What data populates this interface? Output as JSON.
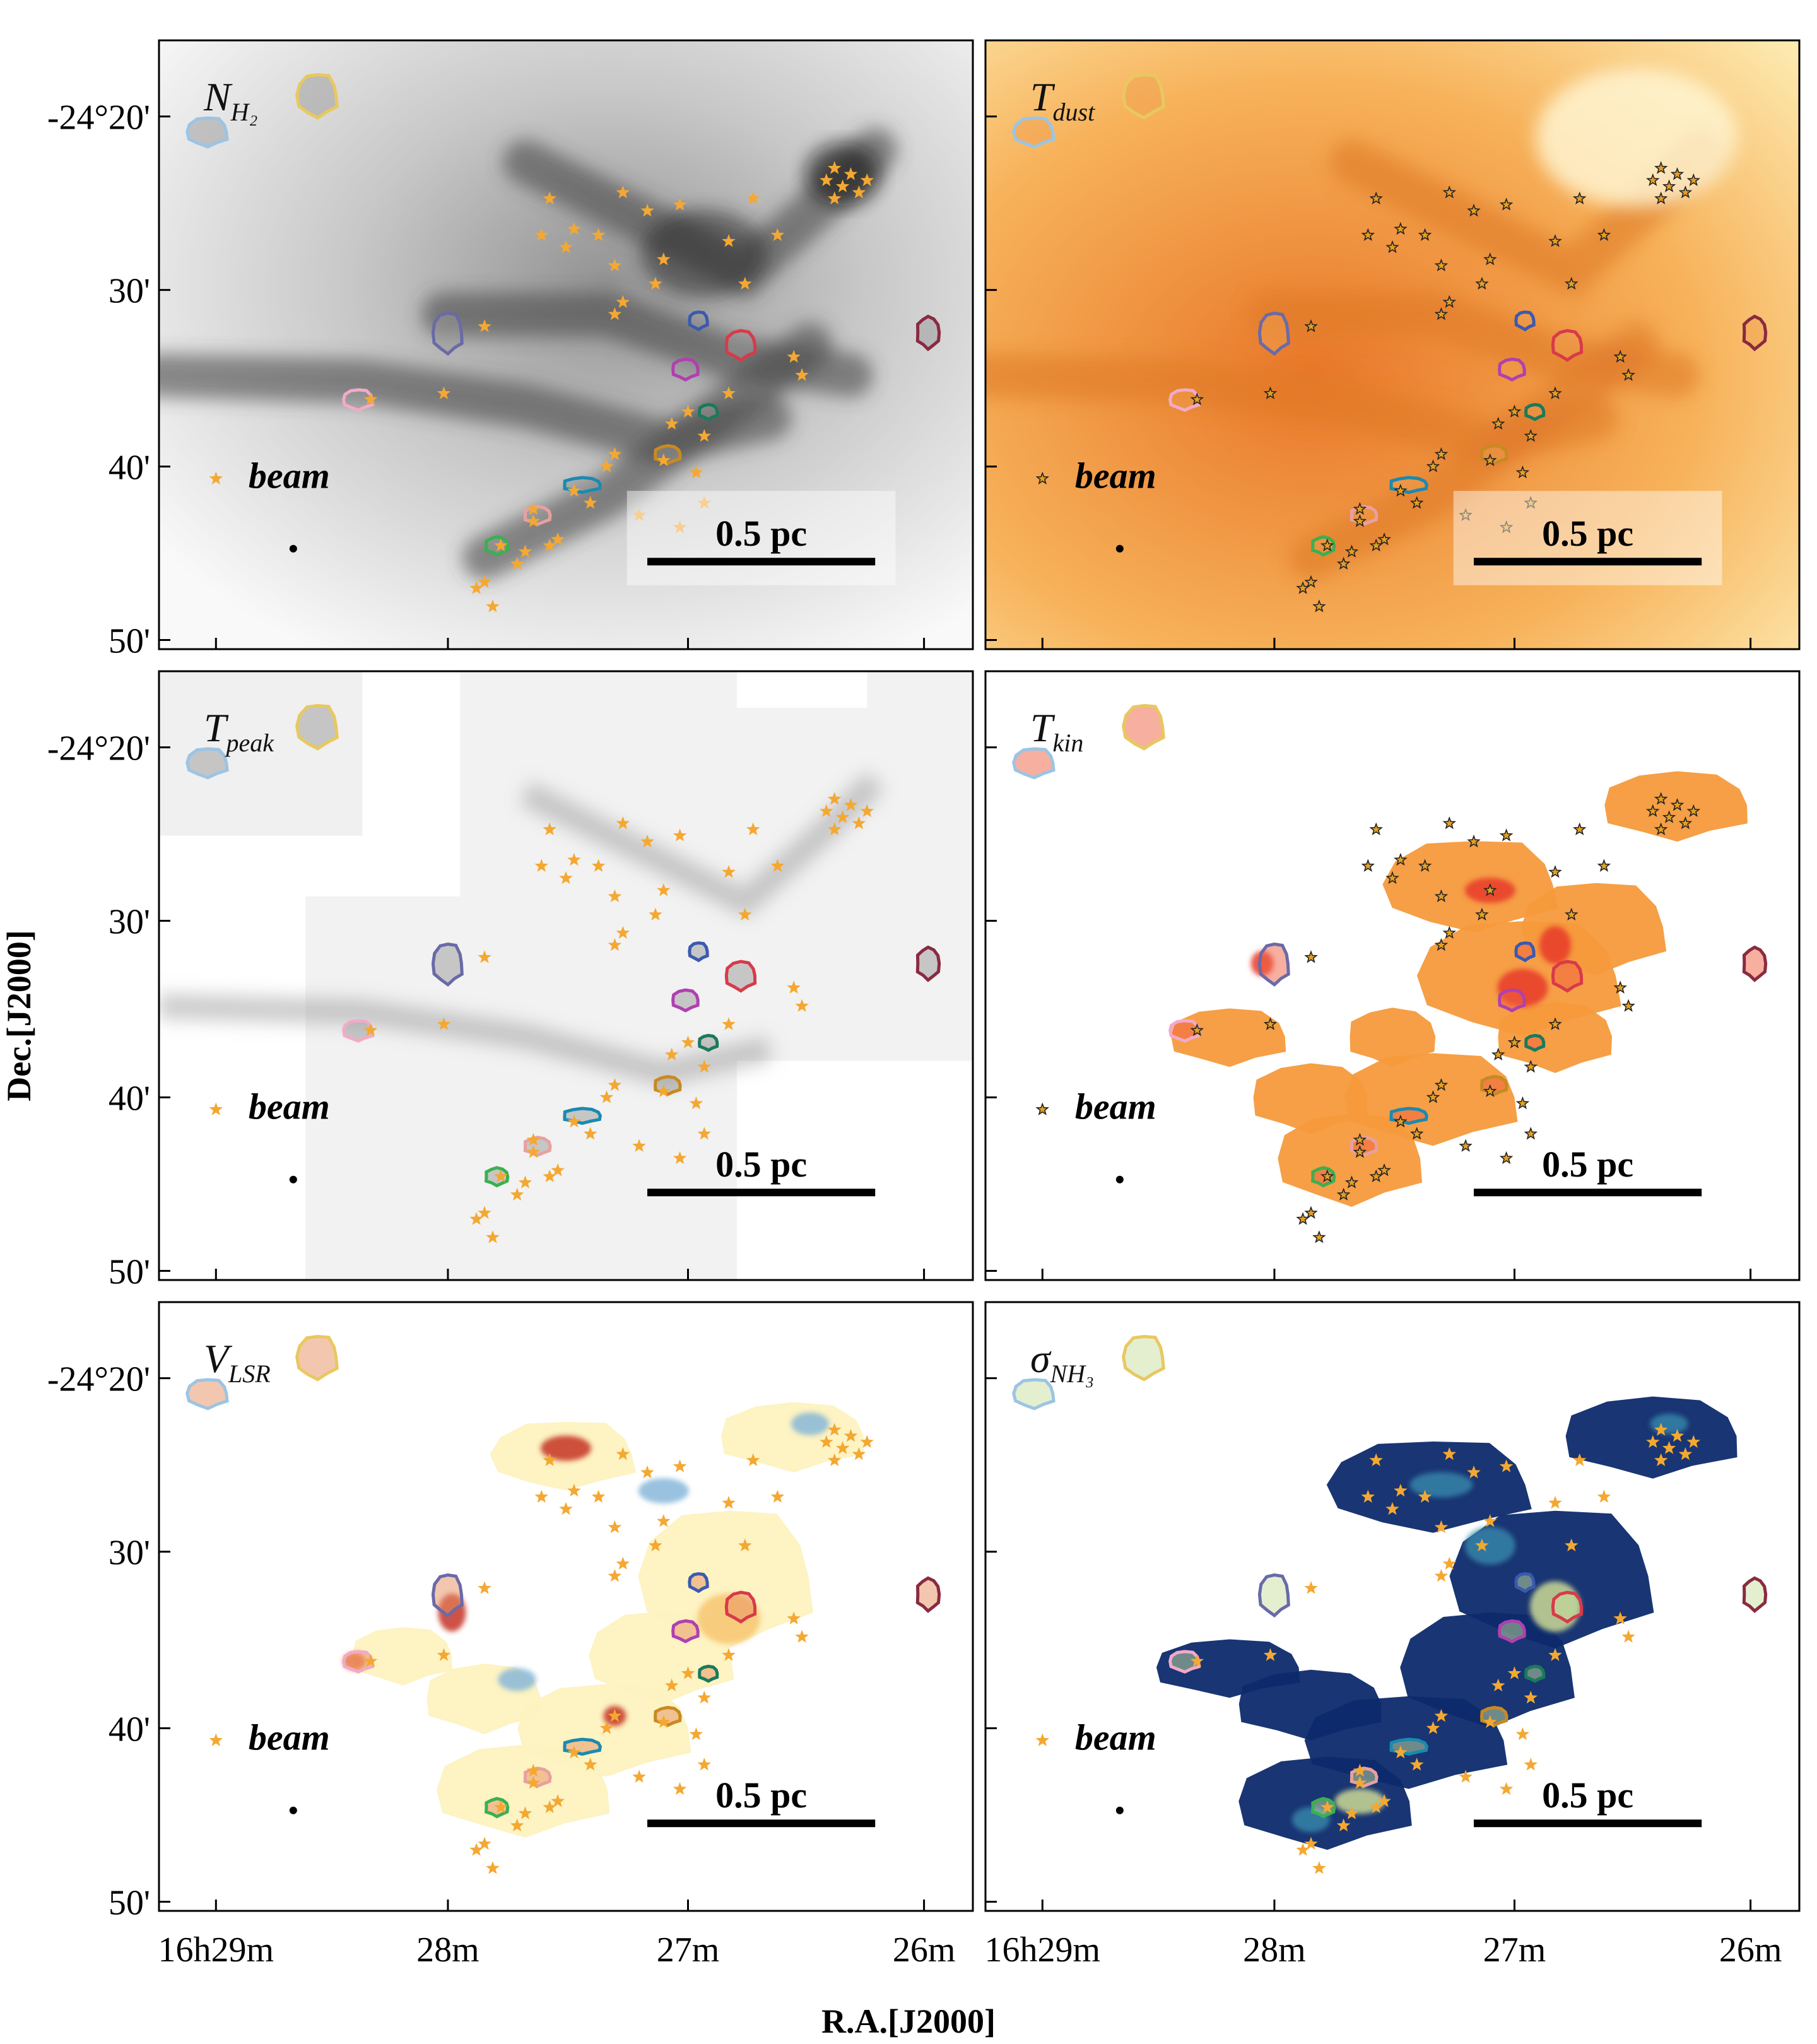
{
  "figure": {
    "xlabel": "R.A.[J2000]",
    "ylabel": "Dec.[J2000]",
    "x_ticks": [
      "16h29m",
      "28m",
      "27m",
      "26m"
    ],
    "y_ticks": [
      "-24°20'",
      "30'",
      "40'",
      "50'"
    ],
    "panels": [
      {
        "key": "nh2",
        "sym": "N",
        "sub": "H₂",
        "bg": "gray",
        "scale_label": "0.5 pc",
        "beam_label": "beam",
        "star_fill": "#f4a832",
        "star_stroke": "#f4a832"
      },
      {
        "key": "tdust",
        "sym": "T",
        "sub": "dust",
        "bg": "orange",
        "scale_label": "0.5 pc",
        "beam_label": "beam",
        "star_fill": "#e6a020",
        "star_stroke": "#222222"
      },
      {
        "key": "tpeak",
        "sym": "T",
        "sub": "peak",
        "bg": "lightgray",
        "scale_label": "0.5 pc",
        "beam_label": "beam",
        "star_fill": "#f4a832",
        "star_stroke": "#f4a832"
      },
      {
        "key": "tkin",
        "sym": "T",
        "sub": "kin",
        "bg": "white",
        "scale_label": "0.5 pc",
        "beam_label": "beam",
        "star_fill": "#e6a020",
        "star_stroke": "#222222"
      },
      {
        "key": "vlsr",
        "sym": "V",
        "sub": "LSR",
        "bg": "white",
        "scale_label": "0.5 pc",
        "beam_label": "beam",
        "star_fill": "#f4a832",
        "star_stroke": "#f4a832"
      },
      {
        "key": "sigma",
        "sym": "σ",
        "sub": "NH₃",
        "bg": "white",
        "scale_label": "0.5 pc",
        "beam_label": "beam",
        "star_fill": "#f4a832",
        "star_stroke": "#f4a832"
      }
    ],
    "colors": {
      "gray_dark": "#3a3a3a",
      "orange_dark": "#e8772a",
      "orange_light": "#fdeab0",
      "tkin_fill": "#f59a3c",
      "tkin_hot": "#e8382a",
      "vlsr_red": "#c0281a",
      "vlsr_cream": "#fdf2c0",
      "vlsr_blue": "#7fb3d8",
      "sigma_navy": "#0d2a6b",
      "sigma_teal": "#3a8fb0",
      "sigma_yellow": "#e6f09a"
    }
  }
}
